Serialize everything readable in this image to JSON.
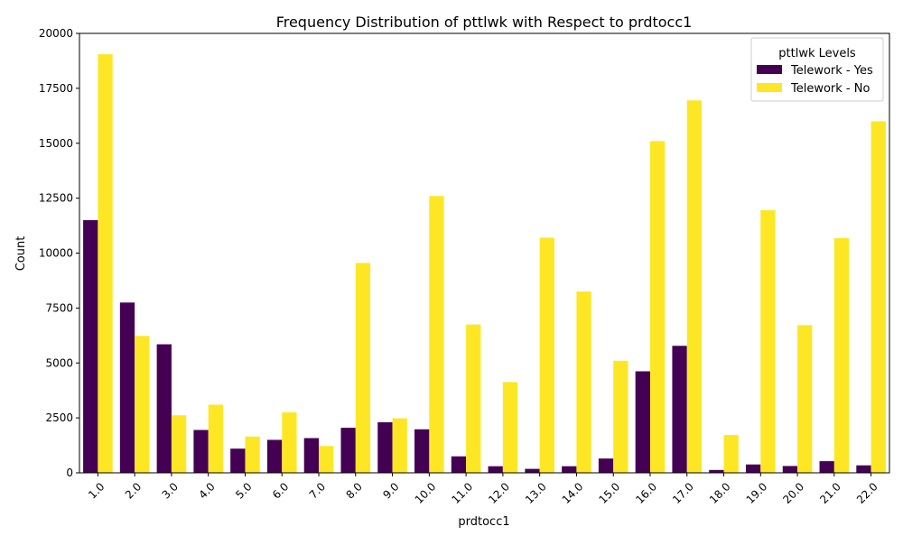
{
  "chart_data": {
    "type": "bar",
    "title": "Frequency Distribution of pttlwk with Respect to prdtocc1",
    "xlabel": "prdtocc1",
    "ylabel": "Count",
    "ylim": [
      0,
      20000
    ],
    "yticks": [
      0,
      2500,
      5000,
      7500,
      10000,
      12500,
      15000,
      17500,
      20000
    ],
    "categories": [
      "1.0",
      "2.0",
      "3.0",
      "4.0",
      "5.0",
      "6.0",
      "7.0",
      "8.0",
      "9.0",
      "10.0",
      "11.0",
      "12.0",
      "13.0",
      "14.0",
      "15.0",
      "16.0",
      "17.0",
      "18.0",
      "19.0",
      "20.0",
      "21.0",
      "22.0"
    ],
    "series": [
      {
        "name": "Telework - Yes",
        "color": "#440154",
        "values": [
          11500,
          7750,
          5850,
          1950,
          1100,
          1500,
          1580,
          2050,
          2300,
          1980,
          750,
          300,
          180,
          300,
          650,
          4620,
          5780,
          130,
          380,
          310,
          530,
          340
        ]
      },
      {
        "name": "Telework - No",
        "color": "#fde725",
        "values": [
          19050,
          6230,
          2620,
          3100,
          1650,
          2750,
          1220,
          9550,
          2480,
          12600,
          6750,
          4130,
          10700,
          8250,
          5100,
          15100,
          16950,
          1720,
          11950,
          6720,
          10680,
          16000
        ]
      }
    ],
    "legend": {
      "title": "pttlwk Levels",
      "position": "top-right"
    },
    "grid": false
  }
}
